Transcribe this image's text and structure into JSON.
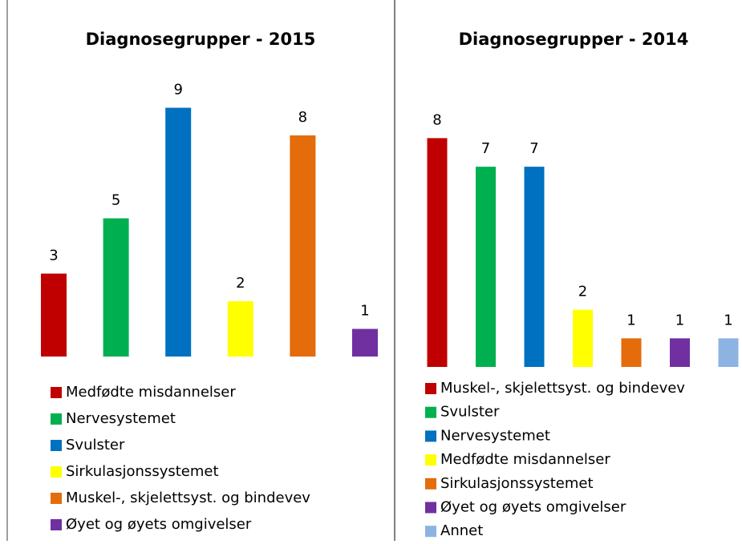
{
  "chart_data": [
    {
      "type": "bar",
      "title": "Diagnosegrupper - 2015",
      "categories": [
        "Medfødte misdannelser",
        "Nervesystemet",
        "Svulster",
        "Sirkulasjonssystemet",
        "Muskel-, skjelettsyst. og bindevev",
        "Øyet og øyets omgivelser"
      ],
      "values": [
        3,
        5,
        9,
        2,
        8,
        1
      ],
      "colors": [
        "#c00000",
        "#00b050",
        "#0070c0",
        "#ffff00",
        "#e46c0a",
        "#7030a0"
      ]
    },
    {
      "type": "bar",
      "title": "Diagnosegrupper - 2014",
      "categories": [
        "Muskel-, skjelettsyst. og bindevev",
        "Svulster",
        "Nervesystemet",
        "Medfødte misdannelser",
        "Sirkulasjonssystemet",
        "Øyet og øyets omgivelser",
        "Annet"
      ],
      "values": [
        8,
        7,
        7,
        2,
        1,
        1,
        1
      ],
      "colors": [
        "#c00000",
        "#00b050",
        "#0070c0",
        "#ffff00",
        "#e46c0a",
        "#7030a0",
        "#8db3e2"
      ]
    }
  ]
}
